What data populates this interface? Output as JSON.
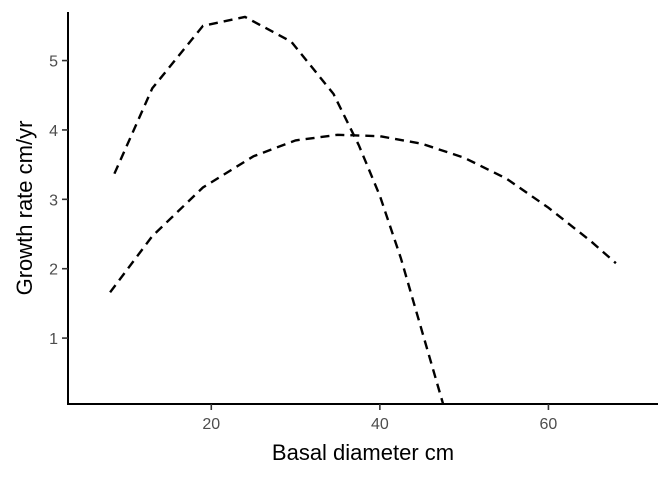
{
  "chart_data": {
    "type": "line",
    "title": "",
    "xlabel": "Basal diameter cm",
    "ylabel": "Growth rate cm/yr",
    "xlim": [
      3,
      73
    ],
    "ylim": [
      0.05,
      5.7
    ],
    "x_ticks": [
      20,
      40,
      60
    ],
    "y_ticks": [
      1,
      2,
      3,
      4,
      5
    ],
    "x_tick_labels": [
      "20",
      "40",
      "60"
    ],
    "y_tick_labels": [
      "1",
      "2",
      "3",
      "4",
      "5"
    ],
    "grid": false,
    "legend": "none",
    "series": [
      {
        "line_style": "dashed",
        "color": "#000000",
        "points": [
          [
            8.5,
            3.37
          ],
          [
            13,
            4.6
          ],
          [
            19,
            5.5
          ],
          [
            24,
            5.63
          ],
          [
            29.5,
            5.27
          ],
          [
            34.5,
            4.52
          ],
          [
            37.5,
            3.78
          ],
          [
            40,
            3.05
          ],
          [
            42.5,
            2.15
          ],
          [
            45,
            1.1
          ],
          [
            47.5,
            0.05
          ]
        ]
      },
      {
        "line_style": "dashed",
        "color": "#000000",
        "points": [
          [
            8,
            1.66
          ],
          [
            13,
            2.47
          ],
          [
            19,
            3.17
          ],
          [
            25,
            3.62
          ],
          [
            30,
            3.85
          ],
          [
            35,
            3.93
          ],
          [
            40,
            3.91
          ],
          [
            45,
            3.8
          ],
          [
            50,
            3.6
          ],
          [
            55,
            3.3
          ],
          [
            60,
            2.88
          ],
          [
            65,
            2.4
          ],
          [
            68,
            2.08
          ]
        ]
      }
    ]
  }
}
